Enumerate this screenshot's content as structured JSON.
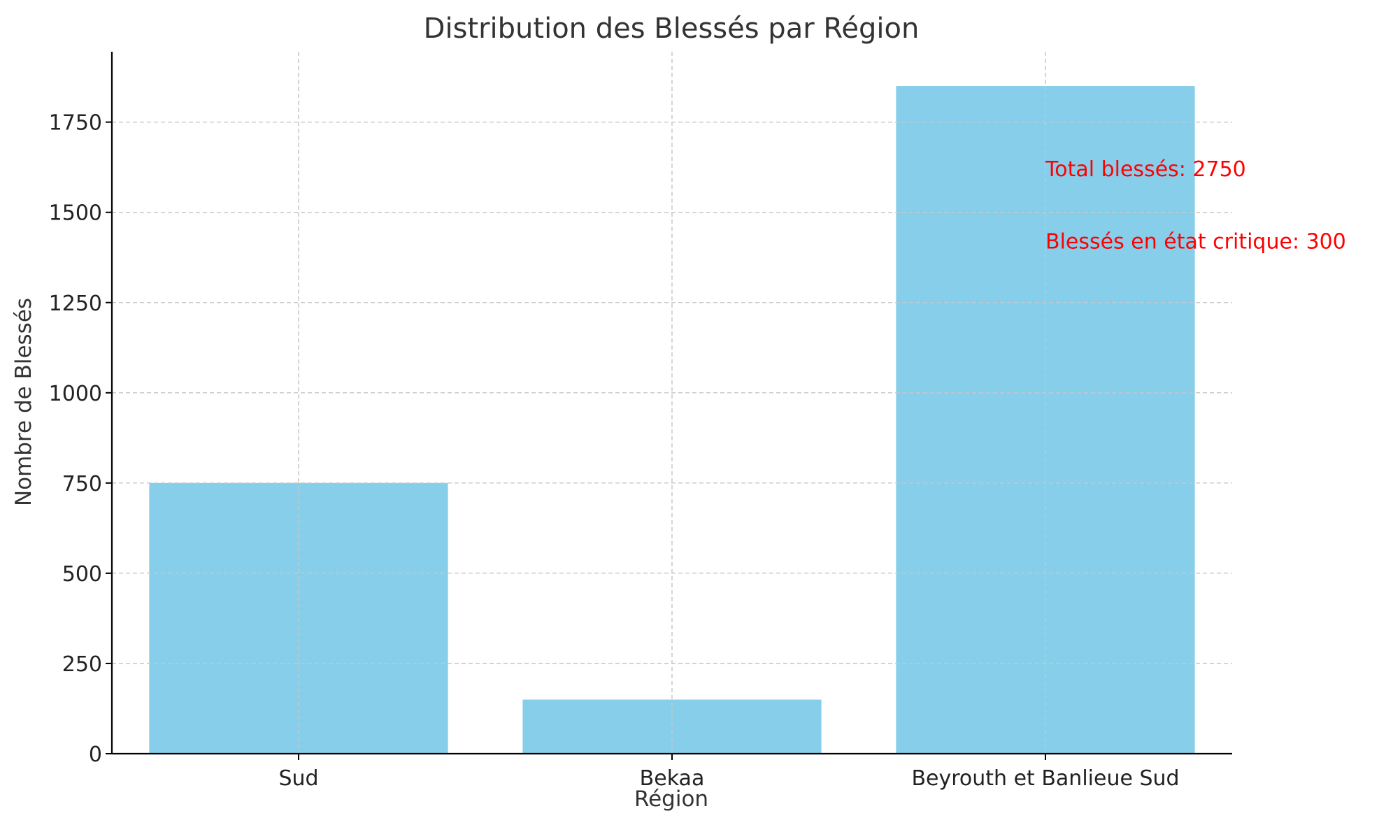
{
  "chart_data": {
    "type": "bar",
    "title": "Distribution des Blessés par Région",
    "xlabel": "Région",
    "ylabel": "Nombre de Blessés",
    "categories": [
      "Sud",
      "Bekaa",
      "Beyrouth et Banlieue Sud"
    ],
    "values": [
      750,
      150,
      1850
    ],
    "ylim": [
      0,
      1945
    ],
    "yticks": [
      0,
      250,
      500,
      750,
      1000,
      1250,
      1500,
      1750
    ],
    "grid": true,
    "bar_color": "#87CEEB",
    "annotations": [
      {
        "text": "Total blessés: 2750",
        "x": "Beyrouth et Banlieue Sud",
        "y": 1600,
        "color": "#ff0000"
      },
      {
        "text": "Blessés en état critique: 300",
        "x": "Beyrouth et Banlieue Sud",
        "y": 1400,
        "color": "#ff0000"
      }
    ]
  }
}
